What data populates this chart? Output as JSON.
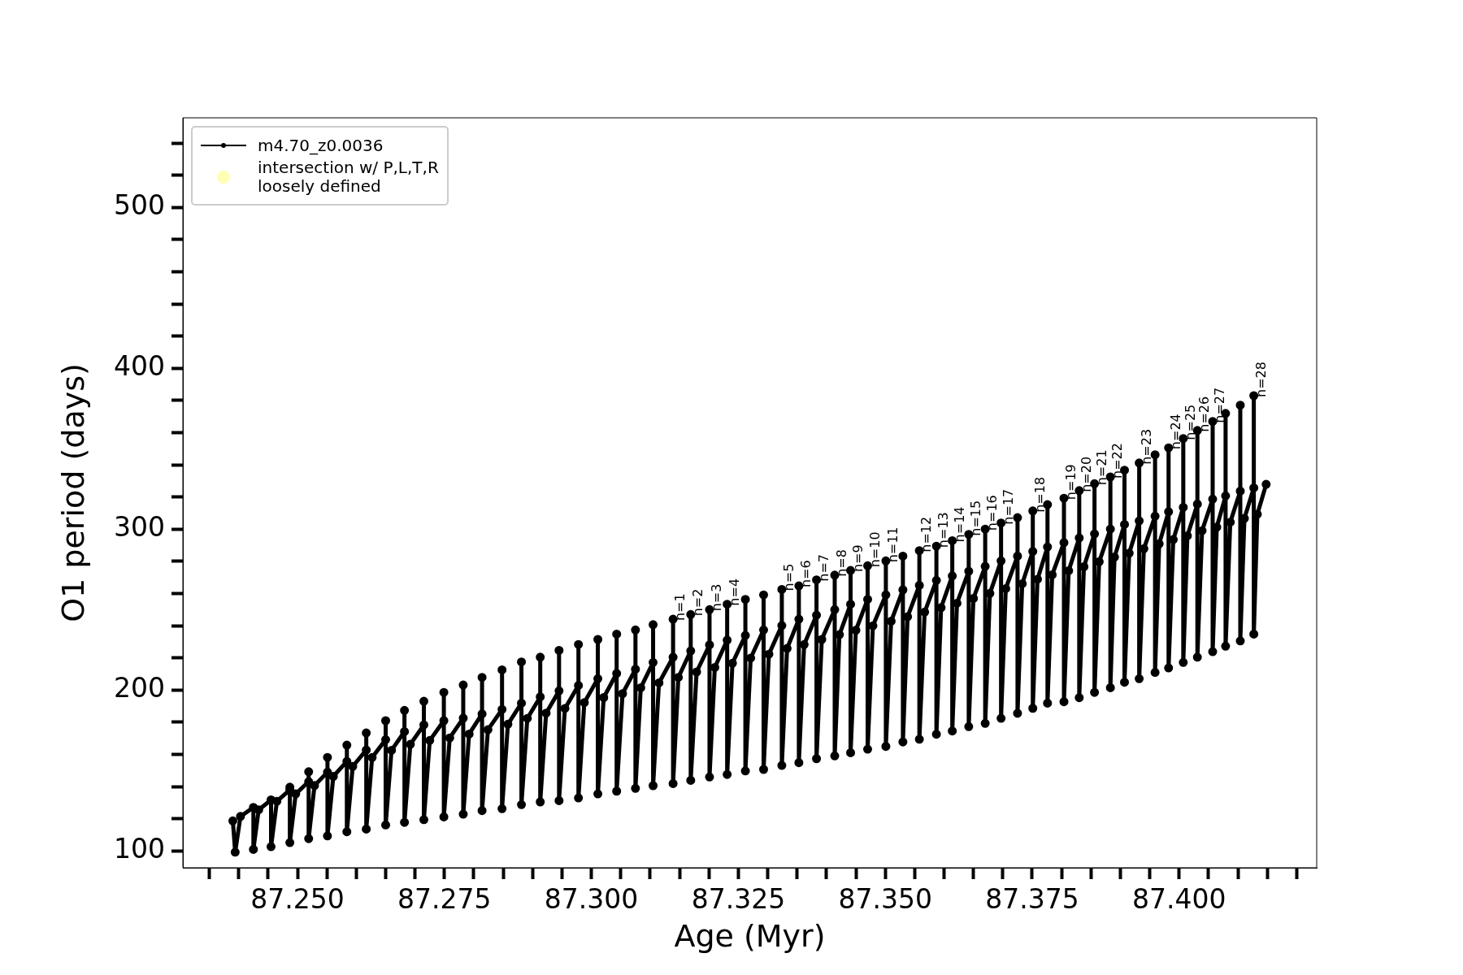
{
  "chart_data": {
    "type": "line",
    "xlabel": "Age (Myr)",
    "ylabel": "O1 period (days)",
    "xlim": [
      87.2305,
      87.4234
    ],
    "ylim": [
      89.6,
      555.7
    ],
    "xticks": [
      {
        "value": 87.235,
        "label": null
      },
      {
        "value": 87.24,
        "label": null
      },
      {
        "value": 87.245,
        "label": null
      },
      {
        "value": 87.25,
        "label": "87.250"
      },
      {
        "value": 87.255,
        "label": null
      },
      {
        "value": 87.26,
        "label": null
      },
      {
        "value": 87.265,
        "label": null
      },
      {
        "value": 87.27,
        "label": null
      },
      87.275,
      {
        "value": 87.28,
        "label": null
      },
      {
        "value": 87.285,
        "label": null
      },
      {
        "value": 87.29,
        "label": null
      },
      {
        "value": 87.295,
        "label": null
      },
      {
        "value": 87.3,
        "label": "87.300"
      },
      {
        "value": 87.305,
        "label": null
      },
      {
        "value": 87.31,
        "label": null
      },
      {
        "value": 87.315,
        "label": null
      },
      {
        "value": 87.32,
        "label": null
      },
      87.325,
      {
        "value": 87.33,
        "label": null
      },
      {
        "value": 87.335,
        "label": null
      },
      {
        "value": 87.34,
        "label": null
      },
      {
        "value": 87.345,
        "label": null
      },
      {
        "value": 87.35,
        "label": "87.350"
      },
      {
        "value": 87.355,
        "label": null
      },
      {
        "value": 87.36,
        "label": null
      },
      {
        "value": 87.365,
        "label": null
      },
      {
        "value": 87.37,
        "label": null
      },
      87.375,
      {
        "value": 87.38,
        "label": null
      },
      {
        "value": 87.385,
        "label": null
      },
      {
        "value": 87.39,
        "label": null
      },
      {
        "value": 87.395,
        "label": null
      },
      {
        "value": 87.4,
        "label": "87.400"
      },
      {
        "value": 87.405,
        "label": null
      },
      {
        "value": 87.41,
        "label": null
      },
      {
        "value": 87.415,
        "label": null
      },
      {
        "value": 87.42,
        "label": null
      }
    ],
    "yticks": [
      100,
      {
        "value": 120,
        "label": null
      },
      {
        "value": 140,
        "label": null
      },
      {
        "value": 160,
        "label": null
      },
      {
        "value": 180,
        "label": null
      },
      200,
      {
        "value": 220,
        "label": null
      },
      {
        "value": 240,
        "label": null
      },
      {
        "value": 260,
        "label": null
      },
      {
        "value": 280,
        "label": null
      },
      300,
      {
        "value": 320,
        "label": null
      },
      {
        "value": 340,
        "label": null
      },
      {
        "value": 360,
        "label": null
      },
      {
        "value": 380,
        "label": null
      },
      400,
      {
        "value": 420,
        "label": null
      },
      {
        "value": 440,
        "label": null
      },
      {
        "value": 460,
        "label": null
      },
      {
        "value": 480,
        "label": null
      },
      500,
      {
        "value": 520,
        "label": null
      },
      {
        "value": 540,
        "label": null
      }
    ],
    "grid": false,
    "legend": "top left",
    "marker": "circle",
    "line_style": "solid",
    "series": [
      {
        "name": "m4.70_z0.0036",
        "color": "#000000",
        "x": [
          87.239,
          87.2394,
          87.2403,
          87.2425,
          87.2425,
          87.2434,
          87.2455,
          87.2455,
          87.2465,
          87.2487,
          87.2487,
          87.2487,
          87.2497,
          87.2519,
          87.2519,
          87.2519,
          87.2529,
          87.2551,
          87.2551,
          87.2551,
          87.2561,
          87.2584,
          87.2584,
          87.2584,
          87.2594,
          87.2617,
          87.2617,
          87.2617,
          87.2627,
          87.265,
          87.265,
          87.265,
          87.266,
          87.2682,
          87.2682,
          87.2682,
          87.2692,
          87.2715,
          87.2715,
          87.2715,
          87.2725,
          87.2749,
          87.2749,
          87.2749,
          87.2759,
          87.2782,
          87.2782,
          87.2782,
          87.2792,
          87.2814,
          87.2814,
          87.2814,
          87.2824,
          87.2848,
          87.2848,
          87.2848,
          87.2858,
          87.2881,
          87.2881,
          87.2881,
          87.2891,
          87.2913,
          87.2913,
          87.2913,
          87.2923,
          87.2945,
          87.2945,
          87.2945,
          87.2955,
          87.2978,
          87.2978,
          87.2978,
          87.2988,
          87.3011,
          87.3011,
          87.3011,
          87.3021,
          87.3043,
          87.3043,
          87.3043,
          87.3053,
          87.3075,
          87.3075,
          87.3075,
          87.3084,
          87.3105,
          87.3105,
          87.3105,
          87.3115,
          87.3139,
          87.3139,
          87.3139,
          87.3148,
          87.3169,
          87.3169,
          87.3169,
          87.3179,
          87.3201,
          87.3201,
          87.3201,
          87.321,
          87.3231,
          87.3231,
          87.3231,
          87.324,
          87.3262,
          87.3262,
          87.3262,
          87.3271,
          87.3293,
          87.3293,
          87.3293,
          87.3302,
          87.3324,
          87.3324,
          87.3324,
          87.3333,
          87.3353,
          87.3353,
          87.3353,
          87.3362,
          87.3383,
          87.3383,
          87.3383,
          87.3392,
          87.3414,
          87.3414,
          87.3414,
          87.3422,
          87.3441,
          87.3441,
          87.3441,
          87.345,
          87.347,
          87.347,
          87.347,
          87.3479,
          87.3501,
          87.3501,
          87.3501,
          87.351,
          87.353,
          87.353,
          87.353,
          87.3538,
          87.3558,
          87.3558,
          87.3558,
          87.3567,
          87.3587,
          87.3587,
          87.3587,
          87.3595,
          87.3614,
          87.3614,
          87.3614,
          87.3622,
          87.3642,
          87.3642,
          87.3642,
          87.365,
          87.367,
          87.367,
          87.367,
          87.3678,
          87.3697,
          87.3697,
          87.3697,
          87.3705,
          87.3725,
          87.3725,
          87.3725,
          87.3733,
          87.3751,
          87.3751,
          87.3751,
          87.3759,
          87.3776,
          87.3776,
          87.3776,
          87.3784,
          87.3804,
          87.3804,
          87.3804,
          87.3812,
          87.383,
          87.383,
          87.383,
          87.3838,
          87.3856,
          87.3856,
          87.3856,
          87.3864,
          87.3883,
          87.3883,
          87.3883,
          87.389,
          87.3907,
          87.3907,
          87.3907,
          87.3915,
          87.3932,
          87.3932,
          87.3932,
          87.394,
          87.3959,
          87.3959,
          87.3959,
          87.3966,
          87.3982,
          87.3982,
          87.3982,
          87.399,
          87.4007,
          87.4007,
          87.4007,
          87.4014,
          87.4031,
          87.4031,
          87.4031,
          87.4039,
          87.4057,
          87.4057,
          87.4057,
          87.4064,
          87.4079,
          87.4079,
          87.4079,
          87.4087,
          87.4104,
          87.4104,
          87.4104,
          87.4111,
          87.4127,
          87.4127,
          87.4127,
          87.4133,
          87.4148
        ],
        "values": [
          118.7,
          99.3,
          121.5,
          127.1,
          101.0,
          125.6,
          131.8,
          102.7,
          130.9,
          138.0,
          139.7,
          105.2,
          135.5,
          143.1,
          149.3,
          107.7,
          140.7,
          149.0,
          158.2,
          109.4,
          146.4,
          155.7,
          165.8,
          112.0,
          152.6,
          162.8,
          173.4,
          113.6,
          158.1,
          169.2,
          181.0,
          116.2,
          162.6,
          174.2,
          187.4,
          117.8,
          166.3,
          178.4,
          193.1,
          119.5,
          168.7,
          181.0,
          198.6,
          121.2,
          170.3,
          182.6,
          203.2,
          122.9,
          172.7,
          185.2,
          207.9,
          125.1,
          175.4,
          188.0,
          212.6,
          126.3,
          178.8,
          191.9,
          217.5,
          128.8,
          182.4,
          195.8,
          220.5,
          130.5,
          185.7,
          199.5,
          224.7,
          131.3,
          188.6,
          202.9,
          228.4,
          133.0,
          192.3,
          207.1,
          231.5,
          135.5,
          195.4,
          210.4,
          234.8,
          137.2,
          197.8,
          213.0,
          237.4,
          138.9,
          201.5,
          217.2,
          240.7,
          140.6,
          204.5,
          220.5,
          244.1,
          141.9,
          207.9,
          224.4,
          247.0,
          143.9,
          211.3,
          228.1,
          250.0,
          146.0,
          214.1,
          231.1,
          253.4,
          147.6,
          216.7,
          234.0,
          256.4,
          149.8,
          219.9,
          237.4,
          259.2,
          150.7,
          222.3,
          240.2,
          262.6,
          153.2,
          225.9,
          244.1,
          264.8,
          154.9,
          228.3,
          246.6,
          268.5,
          157.4,
          231.5,
          250.0,
          271.5,
          159.1,
          234.5,
          253.4,
          274.4,
          161.1,
          237.3,
          256.4,
          277.3,
          163.3,
          240.0,
          259.2,
          280.3,
          165.0,
          242.8,
          262.3,
          283.3,
          167.8,
          245.6,
          265.1,
          286.7,
          169.5,
          248.5,
          268.2,
          289.5,
          172.6,
          251.3,
          271.0,
          292.9,
          174.6,
          254.0,
          273.9,
          296.8,
          177.3,
          257.0,
          276.9,
          300.1,
          179.3,
          260.1,
          280.3,
          303.9,
          182.5,
          263.1,
          283.3,
          307.2,
          185.6,
          266.1,
          286.2,
          311.4,
          188.7,
          268.9,
          289.0,
          315.3,
          191.9,
          271.7,
          291.7,
          319.3,
          192.8,
          274.2,
          294.6,
          324.0,
          195.3,
          276.7,
          297.1,
          328.3,
          198.6,
          279.8,
          300.1,
          332.5,
          201.5,
          282.7,
          303.0,
          336.7,
          204.9,
          285.1,
          305.2,
          341.2,
          207.1,
          287.9,
          308.1,
          346.3,
          211.0,
          290.9,
          310.9,
          350.6,
          213.8,
          293.6,
          313.6,
          356.4,
          217.2,
          295.9,
          315.6,
          361.4,
          220.5,
          299.1,
          318.7,
          367.0,
          223.9,
          301.3,
          320.7,
          372.0,
          227.3,
          304.4,
          323.7,
          377.1,
          230.6,
          306.7,
          325.7,
          383.0,
          234.8,
          309.3,
          327.9
        ]
      },
      {
        "name": "intersection w/ P,L,T,R\nloosely defined",
        "color": "#ffffb3",
        "type": "scatter"
      }
    ],
    "annotations": [
      {
        "text": "n=1",
        "x": 87.3139,
        "y": 244.1
      },
      {
        "text": "n=2",
        "x": 87.3169,
        "y": 247.0
      },
      {
        "text": "n=3",
        "x": 87.3201,
        "y": 250.0
      },
      {
        "text": "n=4",
        "x": 87.3231,
        "y": 253.4
      },
      {
        "text": "n=5",
        "x": 87.3324,
        "y": 262.6
      },
      {
        "text": "n=6",
        "x": 87.3353,
        "y": 264.8
      },
      {
        "text": "n=7",
        "x": 87.3383,
        "y": 268.5
      },
      {
        "text": "n=8",
        "x": 87.3414,
        "y": 271.5
      },
      {
        "text": "n=9",
        "x": 87.3441,
        "y": 274.4
      },
      {
        "text": "n=10",
        "x": 87.347,
        "y": 277.3
      },
      {
        "text": "n=11",
        "x": 87.3501,
        "y": 280.3
      },
      {
        "text": "n=12",
        "x": 87.3558,
        "y": 286.7
      },
      {
        "text": "n=13",
        "x": 87.3587,
        "y": 289.5
      },
      {
        "text": "n=14",
        "x": 87.3614,
        "y": 292.9
      },
      {
        "text": "n=15",
        "x": 87.3642,
        "y": 296.8
      },
      {
        "text": "n=16",
        "x": 87.367,
        "y": 300.1
      },
      {
        "text": "n=17",
        "x": 87.3697,
        "y": 303.9
      },
      {
        "text": "n=18",
        "x": 87.3751,
        "y": 311.4
      },
      {
        "text": "n=19",
        "x": 87.3804,
        "y": 319.3
      },
      {
        "text": "n=20",
        "x": 87.383,
        "y": 324.0
      },
      {
        "text": "n=21",
        "x": 87.3856,
        "y": 328.3
      },
      {
        "text": "n=22",
        "x": 87.3883,
        "y": 332.5
      },
      {
        "text": "n=23",
        "x": 87.3932,
        "y": 341.2
      },
      {
        "text": "n=24",
        "x": 87.3982,
        "y": 350.6
      },
      {
        "text": "n=25",
        "x": 87.4007,
        "y": 356.4
      },
      {
        "text": "n=26",
        "x": 87.4031,
        "y": 361.4
      },
      {
        "text": "n=27",
        "x": 87.4057,
        "y": 367.0
      },
      {
        "text": "n=28",
        "x": 87.4127,
        "y": 383.0
      }
    ]
  }
}
